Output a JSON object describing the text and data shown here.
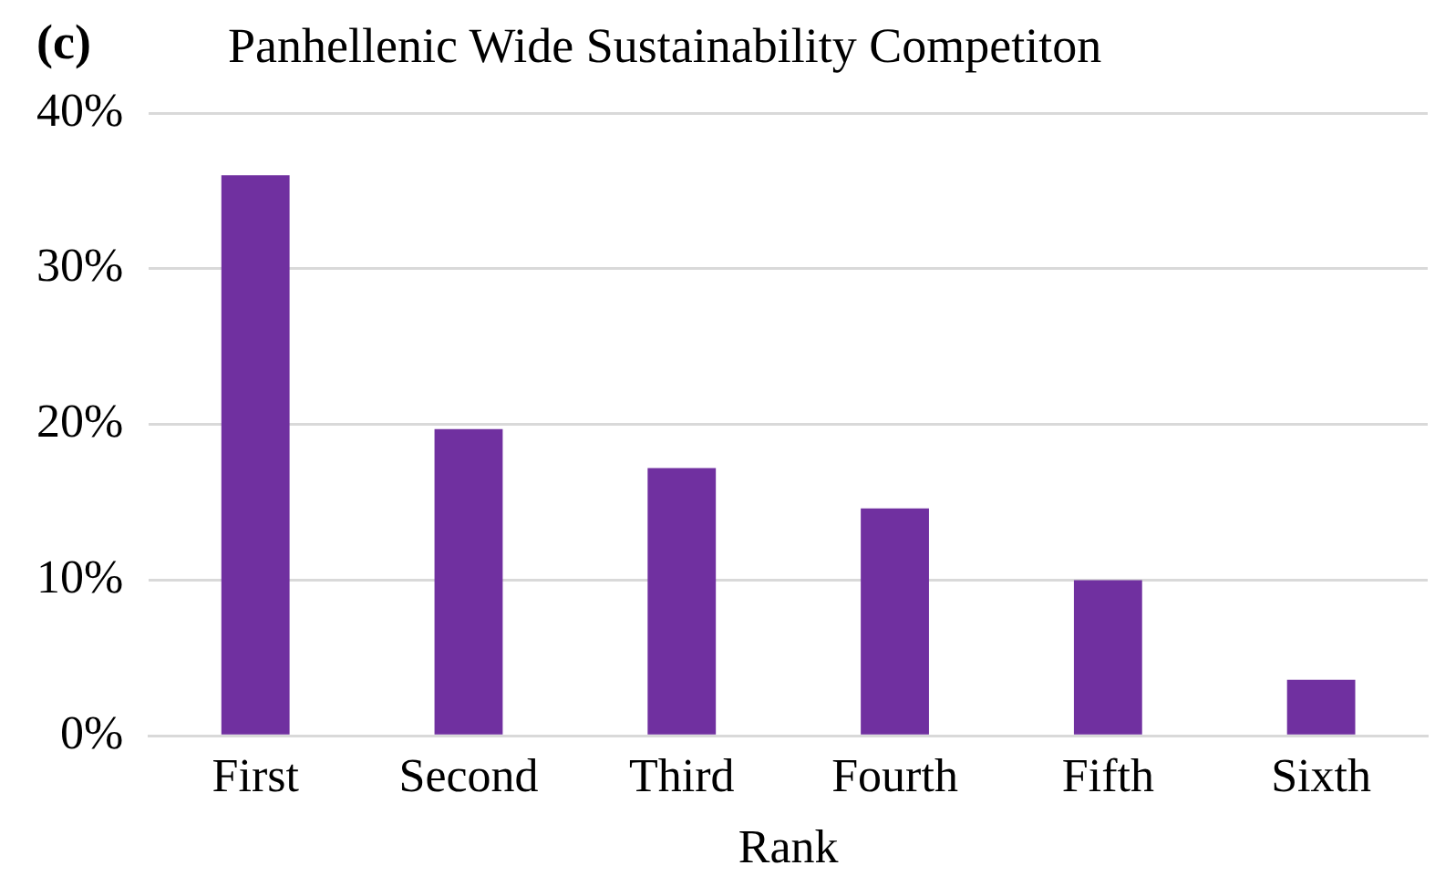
{
  "chart_data": {
    "type": "bar",
    "title": "Panhellenic Wide Sustainability Competiton",
    "annotations": [
      "(c)"
    ],
    "xlabel": "Rank",
    "categories": [
      "First",
      "Second",
      "Third",
      "Fourth",
      "Fifth",
      "Sixth"
    ],
    "values": [
      36,
      19.7,
      17.2,
      14.6,
      10,
      3.6
    ],
    "color": "#7030a0",
    "ylim": [
      0,
      40
    ],
    "yticks": [
      {
        "value": 0,
        "label": "0%"
      },
      {
        "value": 10,
        "label": "10%"
      },
      {
        "value": 20,
        "label": "20%"
      },
      {
        "value": 30,
        "label": "30%"
      },
      {
        "value": 40,
        "label": "40%"
      }
    ],
    "grid": "y",
    "legend": false
  }
}
